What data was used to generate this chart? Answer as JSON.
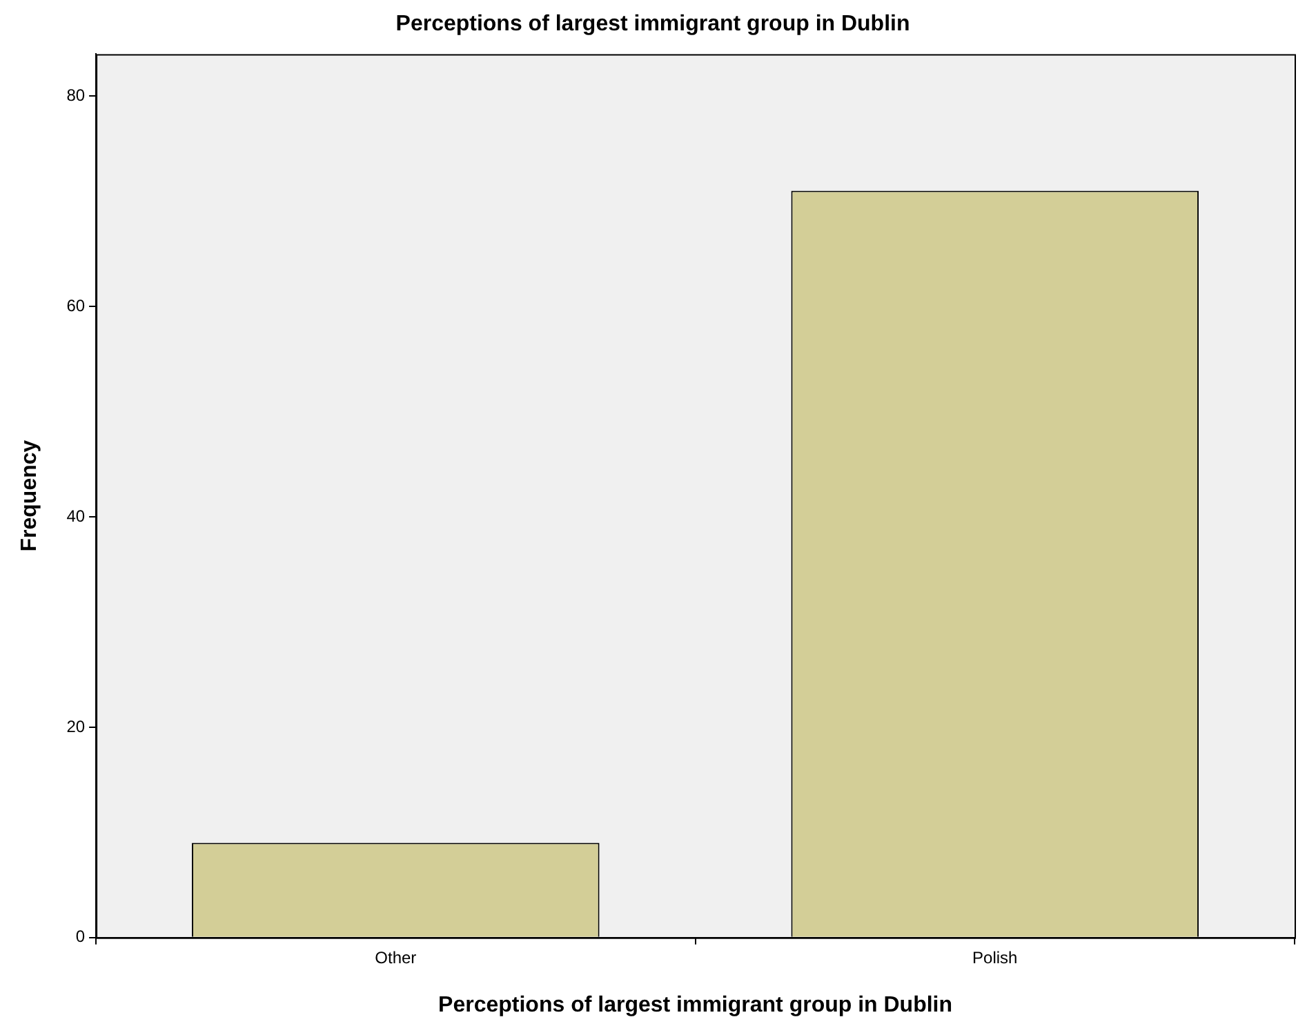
{
  "chart_data": {
    "type": "bar",
    "title": "Perceptions of largest immigrant group in Dublin",
    "xlabel": "Perceptions of largest immigrant group in Dublin",
    "ylabel": "Frequency",
    "categories": [
      "Other",
      "Polish"
    ],
    "values": [
      9,
      71
    ],
    "color": "#d3ce97",
    "ylim": [
      0,
      84
    ],
    "yticks": [
      0,
      20,
      40,
      60,
      80
    ],
    "grid": false,
    "legend": false
  }
}
